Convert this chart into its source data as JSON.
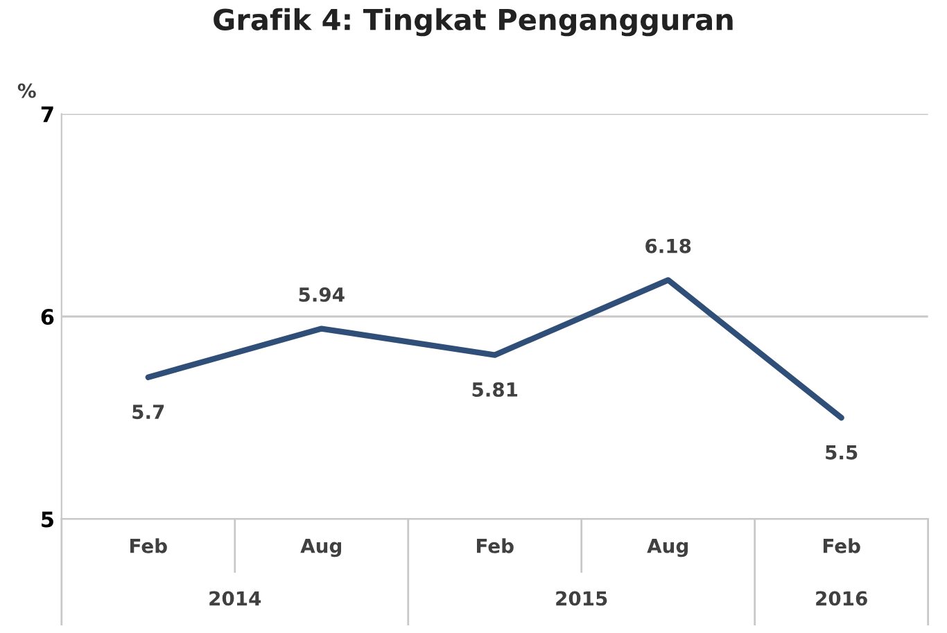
{
  "chart_data": {
    "type": "line",
    "title": "Grafik 4: Tingkat Pengangguran",
    "ylabel": "%",
    "categories": [
      "Feb",
      "Aug",
      "Feb",
      "Aug",
      "Feb"
    ],
    "series": [
      {
        "color": "#2f4f78",
        "values": [
          5.7,
          5.94,
          5.81,
          6.18,
          5.5
        ]
      }
    ],
    "ylim": [
      5,
      7
    ],
    "yticks": [
      5,
      6,
      7
    ],
    "grid": "y",
    "data_labels": true,
    "legend": false,
    "marker": "none",
    "line_style": "solid",
    "annotations": [
      "2014",
      "2015",
      "2016"
    ]
  }
}
